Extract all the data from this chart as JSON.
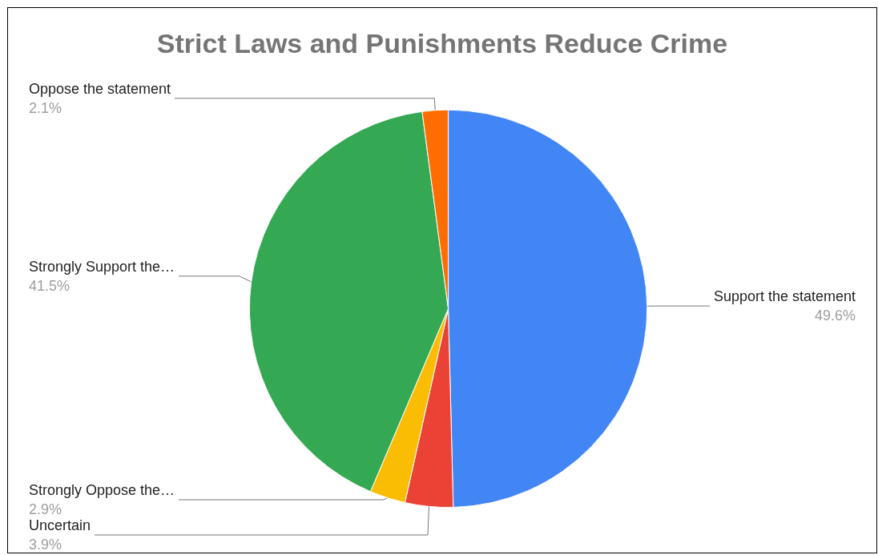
{
  "chart_data": {
    "type": "pie",
    "title": "Strict Laws and Punishments Reduce Crime",
    "categories": [
      "Support the statement",
      "Uncertain",
      "Strongly Oppose the…",
      "Strongly Support the…",
      "Oppose the statement"
    ],
    "values": [
      49.6,
      3.9,
      2.9,
      41.5,
      2.1
    ],
    "value_labels": [
      "49.6%",
      "3.9%",
      "2.9%",
      "41.5%",
      "2.1%"
    ],
    "colors": [
      "#4285f4",
      "#ea4335",
      "#fbbc04",
      "#34a853",
      "#ff6d01"
    ],
    "legend": false
  }
}
